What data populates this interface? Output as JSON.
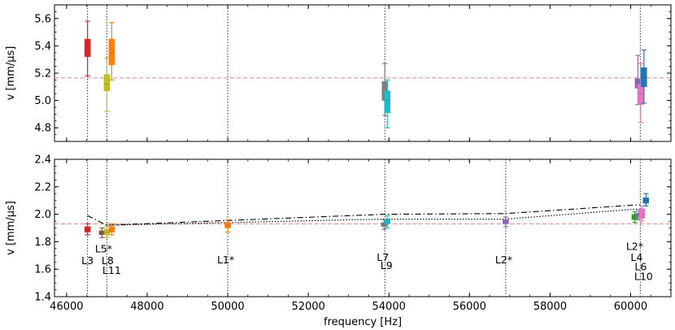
{
  "chart_data": [
    {
      "type": "box-errorbar",
      "panel": "top",
      "ylabel": "v [mm/μs]",
      "xlim": [
        45700,
        61000
      ],
      "ylim": [
        4.7,
        5.7
      ],
      "yticks": [
        4.8,
        5.0,
        5.2,
        5.4,
        5.6
      ],
      "ytick_labels": [
        "4.8",
        "5.0",
        "5.2",
        "5.4",
        "5.6"
      ],
      "reference_line": {
        "y": 5.165,
        "color": "#f08080"
      },
      "vertical_markers": [
        46520,
        47000,
        50000,
        53900,
        60240
      ],
      "series": [
        {
          "name": "L3",
          "color": "#d62728",
          "x": 46520,
          "box": [
            5.32,
            5.45
          ],
          "whisker": [
            5.18,
            5.58
          ],
          "median": 5.37
        },
        {
          "name": "L8",
          "color": "#bcbd22",
          "x": 47000,
          "box": [
            5.07,
            5.19
          ],
          "whisker": [
            4.92,
            5.31
          ],
          "median": 5.12
        },
        {
          "name": "L11",
          "color": "#ff7f0e",
          "x": 47120,
          "box": [
            5.26,
            5.45
          ],
          "whisker": [
            5.15,
            5.57
          ],
          "median": 5.35
        },
        {
          "name": "L7",
          "color": "#7f7f7f",
          "x": 53900,
          "box": [
            5.0,
            5.14
          ],
          "whisker": [
            4.89,
            5.27
          ],
          "median": 5.06
        },
        {
          "name": "L9",
          "color": "#17becf",
          "x": 53960,
          "box": [
            4.91,
            5.07
          ],
          "whisker": [
            4.8,
            5.15
          ],
          "median": 5.0
        },
        {
          "name": "L2*",
          "color": "#9467bd",
          "x": 60180,
          "box": [
            5.09,
            5.16
          ],
          "whisker": [
            4.97,
            5.33
          ],
          "median": 5.13
        },
        {
          "name": "L4",
          "color": "#e377c2",
          "x": 60250,
          "box": [
            4.97,
            5.12
          ],
          "whisker": [
            4.84,
            5.27
          ],
          "median": 5.05
        },
        {
          "name": "L10",
          "color": "#1f77b4",
          "x": 60330,
          "box": [
            5.1,
            5.24
          ],
          "whisker": [
            4.98,
            5.37
          ],
          "median": 5.17
        }
      ]
    },
    {
      "type": "box-errorbar",
      "panel": "bottom",
      "xlabel": "frequency [Hz]",
      "ylabel": "v [mm/μs]",
      "xlim": [
        45700,
        61000
      ],
      "ylim": [
        1.4,
        2.4
      ],
      "xticks": [
        46000,
        48000,
        50000,
        52000,
        54000,
        56000,
        58000,
        60000
      ],
      "xtick_labels": [
        "46000",
        "48000",
        "50000",
        "52000",
        "54000",
        "56000",
        "58000",
        "60000"
      ],
      "yticks": [
        1.4,
        1.6,
        1.8,
        2.0,
        2.2,
        2.4
      ],
      "ytick_labels": [
        "1.4",
        "1.6",
        "1.8",
        "2.0",
        "2.2",
        "2.4"
      ],
      "reference_line": {
        "y": 1.93,
        "color": "#f08080"
      },
      "vertical_markers": [
        46520,
        47000,
        50000,
        53900,
        56900,
        60240
      ],
      "series": [
        {
          "name": "L3",
          "color": "#d62728",
          "x": 46520,
          "box": [
            1.87,
            1.91
          ],
          "whisker": [
            1.85,
            1.93
          ],
          "median": 1.89
        },
        {
          "name": "L5*",
          "color": "#8c564b",
          "x": 46880,
          "box": [
            1.85,
            1.88
          ],
          "whisker": [
            1.83,
            1.9
          ],
          "median": 1.865
        },
        {
          "name": "L8",
          "color": "#bcbd22",
          "x": 47000,
          "box": [
            1.85,
            1.89
          ],
          "whisker": [
            1.83,
            1.91
          ],
          "median": 1.87
        },
        {
          "name": "L11",
          "color": "#ff7f0e",
          "x": 47120,
          "box": [
            1.87,
            1.91
          ],
          "whisker": [
            1.85,
            1.93
          ],
          "median": 1.89
        },
        {
          "name": "L1*",
          "color": "#ff7f0e",
          "x": 50000,
          "box": [
            1.9,
            1.94
          ],
          "whisker": [
            1.87,
            1.96
          ],
          "median": 1.92
        },
        {
          "name": "L7",
          "color": "#7f7f7f",
          "x": 53880,
          "box": [
            1.91,
            1.94
          ],
          "whisker": [
            1.89,
            1.96
          ],
          "median": 1.925
        },
        {
          "name": "L9",
          "color": "#17becf",
          "x": 53960,
          "box": [
            1.93,
            1.96
          ],
          "whisker": [
            1.9,
            1.99
          ],
          "median": 1.945
        },
        {
          "name": "L2*",
          "color": "#9467bd",
          "x": 56900,
          "box": [
            1.93,
            1.96
          ],
          "whisker": [
            1.91,
            1.98
          ],
          "median": 1.945
        },
        {
          "name": "L2*",
          "color": "#2ca02c",
          "x": 60100,
          "box": [
            1.96,
            2.0
          ],
          "whisker": [
            1.94,
            2.02
          ],
          "median": 1.98
        },
        {
          "name": "L4",
          "color": "#9467bd",
          "x": 60200,
          "box": [
            1.98,
            2.01
          ],
          "whisker": [
            1.96,
            2.03
          ],
          "median": 1.995
        },
        {
          "name": "L6",
          "color": "#e377c2",
          "x": 60280,
          "box": [
            1.97,
            2.04
          ],
          "whisker": [
            1.95,
            2.06
          ],
          "median": 2.0
        },
        {
          "name": "L10",
          "color": "#1f77b4",
          "x": 60380,
          "box": [
            2.08,
            2.12
          ],
          "whisker": [
            2.06,
            2.15
          ],
          "median": 2.1
        }
      ],
      "trend_lines": [
        {
          "name": "dash-dot",
          "style": "dashdot",
          "x": [
            46520,
            47000,
            53900,
            56900,
            60240
          ],
          "y": [
            1.99,
            1.92,
            2.0,
            2.005,
            2.07
          ]
        },
        {
          "name": "dotted",
          "style": "dotted",
          "x": [
            47000,
            53900,
            56900,
            60240
          ],
          "y": [
            1.92,
            1.965,
            1.965,
            2.04
          ]
        }
      ],
      "annotations": [
        {
          "text": "L3",
          "x": 46520,
          "y": 1.66
        },
        {
          "text": "L5*",
          "x": 46920,
          "y": 1.745
        },
        {
          "text": "L8",
          "x": 47020,
          "y": 1.66
        },
        {
          "text": "L11",
          "x": 47120,
          "y": 1.59
        },
        {
          "text": "L1*",
          "x": 49950,
          "y": 1.665
        },
        {
          "text": "L7",
          "x": 53850,
          "y": 1.685
        },
        {
          "text": "L9",
          "x": 53940,
          "y": 1.625
        },
        {
          "text": "L2*",
          "x": 56850,
          "y": 1.665
        },
        {
          "text": "L2*",
          "x": 60100,
          "y": 1.765
        },
        {
          "text": "L4",
          "x": 60150,
          "y": 1.685
        },
        {
          "text": "L6",
          "x": 60250,
          "y": 1.615
        },
        {
          "text": "L10",
          "x": 60320,
          "y": 1.545
        }
      ]
    }
  ]
}
